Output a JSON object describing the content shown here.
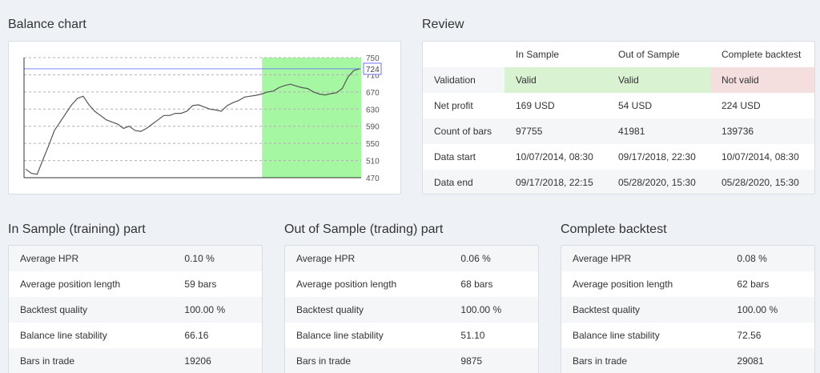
{
  "balance_chart": {
    "title": "Balance chart",
    "y_ticks": [
      "750",
      "710",
      "670",
      "630",
      "590",
      "550",
      "510",
      "470"
    ],
    "current_value": "724",
    "colors": {
      "line": "#555555",
      "in_sample_highlight": "#a6f7a2",
      "marker": "#6b74ff"
    },
    "chart_data": {
      "type": "line",
      "title": "",
      "xlabel": "",
      "ylabel": "",
      "ylim": [
        470,
        750
      ],
      "out_of_sample_start_fraction": 0.706,
      "current_value": 724,
      "y": [
        490,
        480,
        478,
        512,
        545,
        580,
        600,
        620,
        640,
        655,
        660,
        640,
        625,
        615,
        605,
        600,
        595,
        585,
        590,
        580,
        578,
        585,
        595,
        605,
        615,
        615,
        620,
        620,
        625,
        638,
        640,
        635,
        630,
        628,
        625,
        638,
        645,
        650,
        658,
        660,
        662,
        665,
        670,
        672,
        680,
        685,
        688,
        684,
        680,
        678,
        670,
        665,
        663,
        666,
        668,
        678,
        705,
        720,
        724
      ]
    }
  },
  "review": {
    "title": "Review",
    "headers": [
      "",
      "In Sample",
      "Out of Sample",
      "Complete backtest"
    ],
    "rows": [
      [
        "Validation",
        "Valid",
        "Valid",
        "Not valid"
      ],
      [
        "Net profit",
        "169 USD",
        "54 USD",
        "224 USD"
      ],
      [
        "Count of bars",
        "97755",
        "41981",
        "139736"
      ],
      [
        "Data start",
        "10/07/2014, 08:30",
        "09/17/2018, 22:30",
        "10/07/2014, 08:30"
      ],
      [
        "Data end",
        "09/17/2018, 22:15",
        "05/28/2020, 15:30",
        "05/28/2020, 15:30"
      ]
    ],
    "colors": {
      "valid": "#d9f2d2",
      "not_valid": "#f5dede"
    }
  },
  "in_sample": {
    "title": "In Sample (training) part",
    "rows": [
      [
        "Average HPR",
        "0.10 %"
      ],
      [
        "Average position length",
        "59 bars"
      ],
      [
        "Backtest quality",
        "100.00 %"
      ],
      [
        "Balance line stability",
        "66.16"
      ],
      [
        "Bars in trade",
        "19206"
      ]
    ]
  },
  "out_of_sample": {
    "title": "Out of Sample (trading) part",
    "rows": [
      [
        "Average HPR",
        "0.06 %"
      ],
      [
        "Average position length",
        "68 bars"
      ],
      [
        "Backtest quality",
        "100.00 %"
      ],
      [
        "Balance line stability",
        "51.10"
      ],
      [
        "Bars in trade",
        "9875"
      ]
    ]
  },
  "complete": {
    "title": "Complete backtest",
    "rows": [
      [
        "Average HPR",
        "0.08 %"
      ],
      [
        "Average position length",
        "62 bars"
      ],
      [
        "Backtest quality",
        "100.00 %"
      ],
      [
        "Balance line stability",
        "72.56"
      ],
      [
        "Bars in trade",
        "29081"
      ]
    ]
  }
}
